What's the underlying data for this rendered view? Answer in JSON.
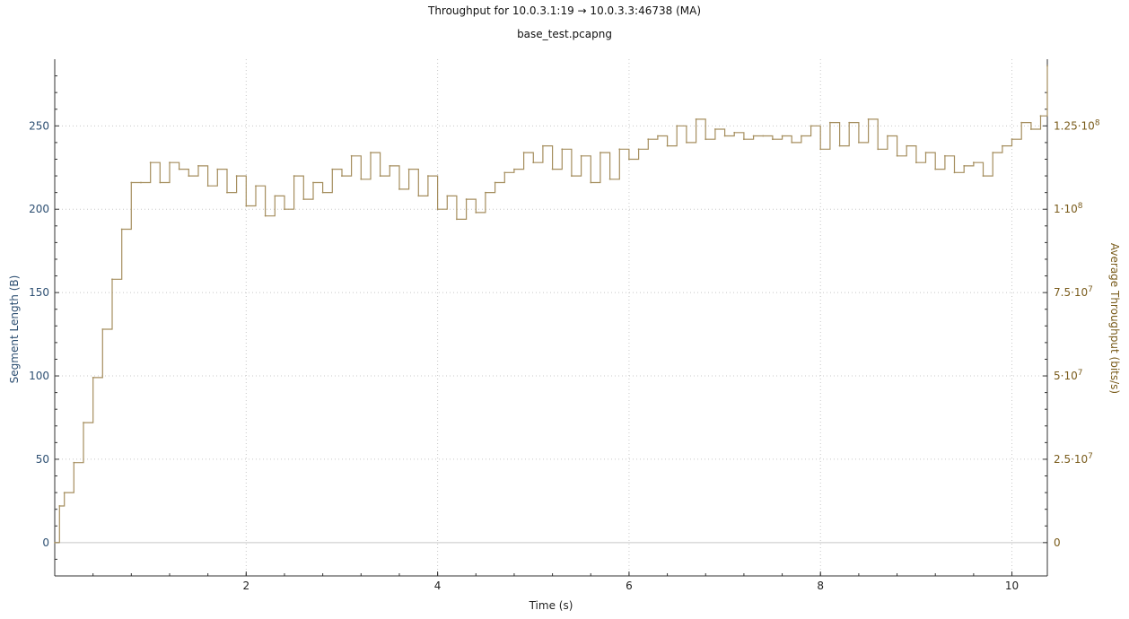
{
  "chart_data": {
    "type": "line",
    "title": "Throughput for 10.0.3.1:19 → 10.0.3.3:46738 (MA)",
    "subtitle": "base_test.pcapng",
    "xlabel": "Time (s)",
    "ylabel_left": "Segment Length (B)",
    "ylabel_right": "Average Throughput (bits/s)",
    "xlim": [
      0,
      10.37
    ],
    "ylim_left": [
      -20,
      290
    ],
    "ylim_right": [
      -10000000,
      145000000
    ],
    "x_ticks": [
      "2",
      "4",
      "6",
      "8",
      "10"
    ],
    "y_left_ticks": [
      "0",
      "50",
      "100",
      "150",
      "200",
      "250"
    ],
    "y_right_ticks": [
      {
        "base": "0",
        "exp": ""
      },
      {
        "base": "2.5·10",
        "exp": "7"
      },
      {
        "base": "5·10",
        "exp": "7"
      },
      {
        "base": "7.5·10",
        "exp": "7"
      },
      {
        "base": "1·10",
        "exp": "8"
      },
      {
        "base": "1.25·10",
        "exp": "8"
      }
    ],
    "grid": true,
    "series": [
      {
        "name": "Average Throughput (bits/s)",
        "axis": "right",
        "color": "#a58e5e",
        "x": [
          0,
          0.05,
          0.1,
          0.2,
          0.3,
          0.4,
          0.5,
          0.6,
          0.7,
          0.8,
          0.9,
          1.0,
          1.1,
          1.2,
          1.3,
          1.4,
          1.5,
          1.6,
          1.7,
          1.8,
          1.9,
          2.0,
          2.1,
          2.2,
          2.3,
          2.4,
          2.5,
          2.6,
          2.7,
          2.8,
          2.9,
          3.0,
          3.1,
          3.2,
          3.3,
          3.4,
          3.5,
          3.6,
          3.7,
          3.8,
          3.9,
          4.0,
          4.1,
          4.2,
          4.3,
          4.4,
          4.5,
          4.6,
          4.7,
          4.8,
          4.9,
          5.0,
          5.1,
          5.2,
          5.3,
          5.4,
          5.5,
          5.6,
          5.7,
          5.8,
          5.9,
          6.0,
          6.1,
          6.2,
          6.3,
          6.4,
          6.5,
          6.6,
          6.7,
          6.8,
          6.9,
          7.0,
          7.1,
          7.2,
          7.3,
          7.4,
          7.5,
          7.6,
          7.7,
          7.8,
          7.9,
          8.0,
          8.1,
          8.2,
          8.3,
          8.4,
          8.5,
          8.6,
          8.7,
          8.8,
          8.9,
          9.0,
          9.1,
          9.2,
          9.3,
          9.4,
          9.5,
          9.6,
          9.7,
          9.8,
          9.9,
          10.0,
          10.1,
          10.2,
          10.3,
          10.37
        ],
        "y": [
          0,
          11000000,
          15000000,
          24000000,
          36000000,
          49500000,
          64000000,
          79000000,
          94000000,
          108000000,
          108000000,
          114000000,
          108000000,
          114000000,
          112000000,
          110000000,
          113000000,
          107000000,
          112000000,
          105000000,
          110000000,
          101000000,
          107000000,
          98000000,
          104000000,
          100000000,
          110000000,
          103000000,
          108000000,
          105000000,
          112000000,
          110000000,
          116000000,
          109000000,
          117000000,
          110000000,
          113000000,
          106000000,
          112000000,
          104000000,
          110000000,
          100000000,
          104000000,
          97000000,
          103000000,
          99000000,
          105000000,
          108000000,
          111000000,
          112000000,
          117000000,
          114000000,
          119000000,
          112000000,
          118000000,
          110000000,
          116000000,
          108000000,
          117000000,
          109000000,
          118000000,
          115000000,
          118000000,
          121000000,
          122000000,
          119000000,
          125000000,
          120000000,
          127000000,
          121000000,
          124000000,
          122000000,
          123000000,
          121000000,
          122000000,
          122000000,
          121000000,
          122000000,
          120000000,
          122000000,
          125000000,
          118000000,
          126000000,
          119000000,
          126000000,
          120000000,
          127000000,
          118000000,
          122000000,
          116000000,
          119000000,
          114000000,
          117000000,
          112000000,
          116000000,
          111000000,
          113000000,
          114000000,
          110000000,
          117000000,
          119000000,
          121000000,
          126000000,
          124000000,
          128000000,
          143000000
        ]
      }
    ]
  }
}
